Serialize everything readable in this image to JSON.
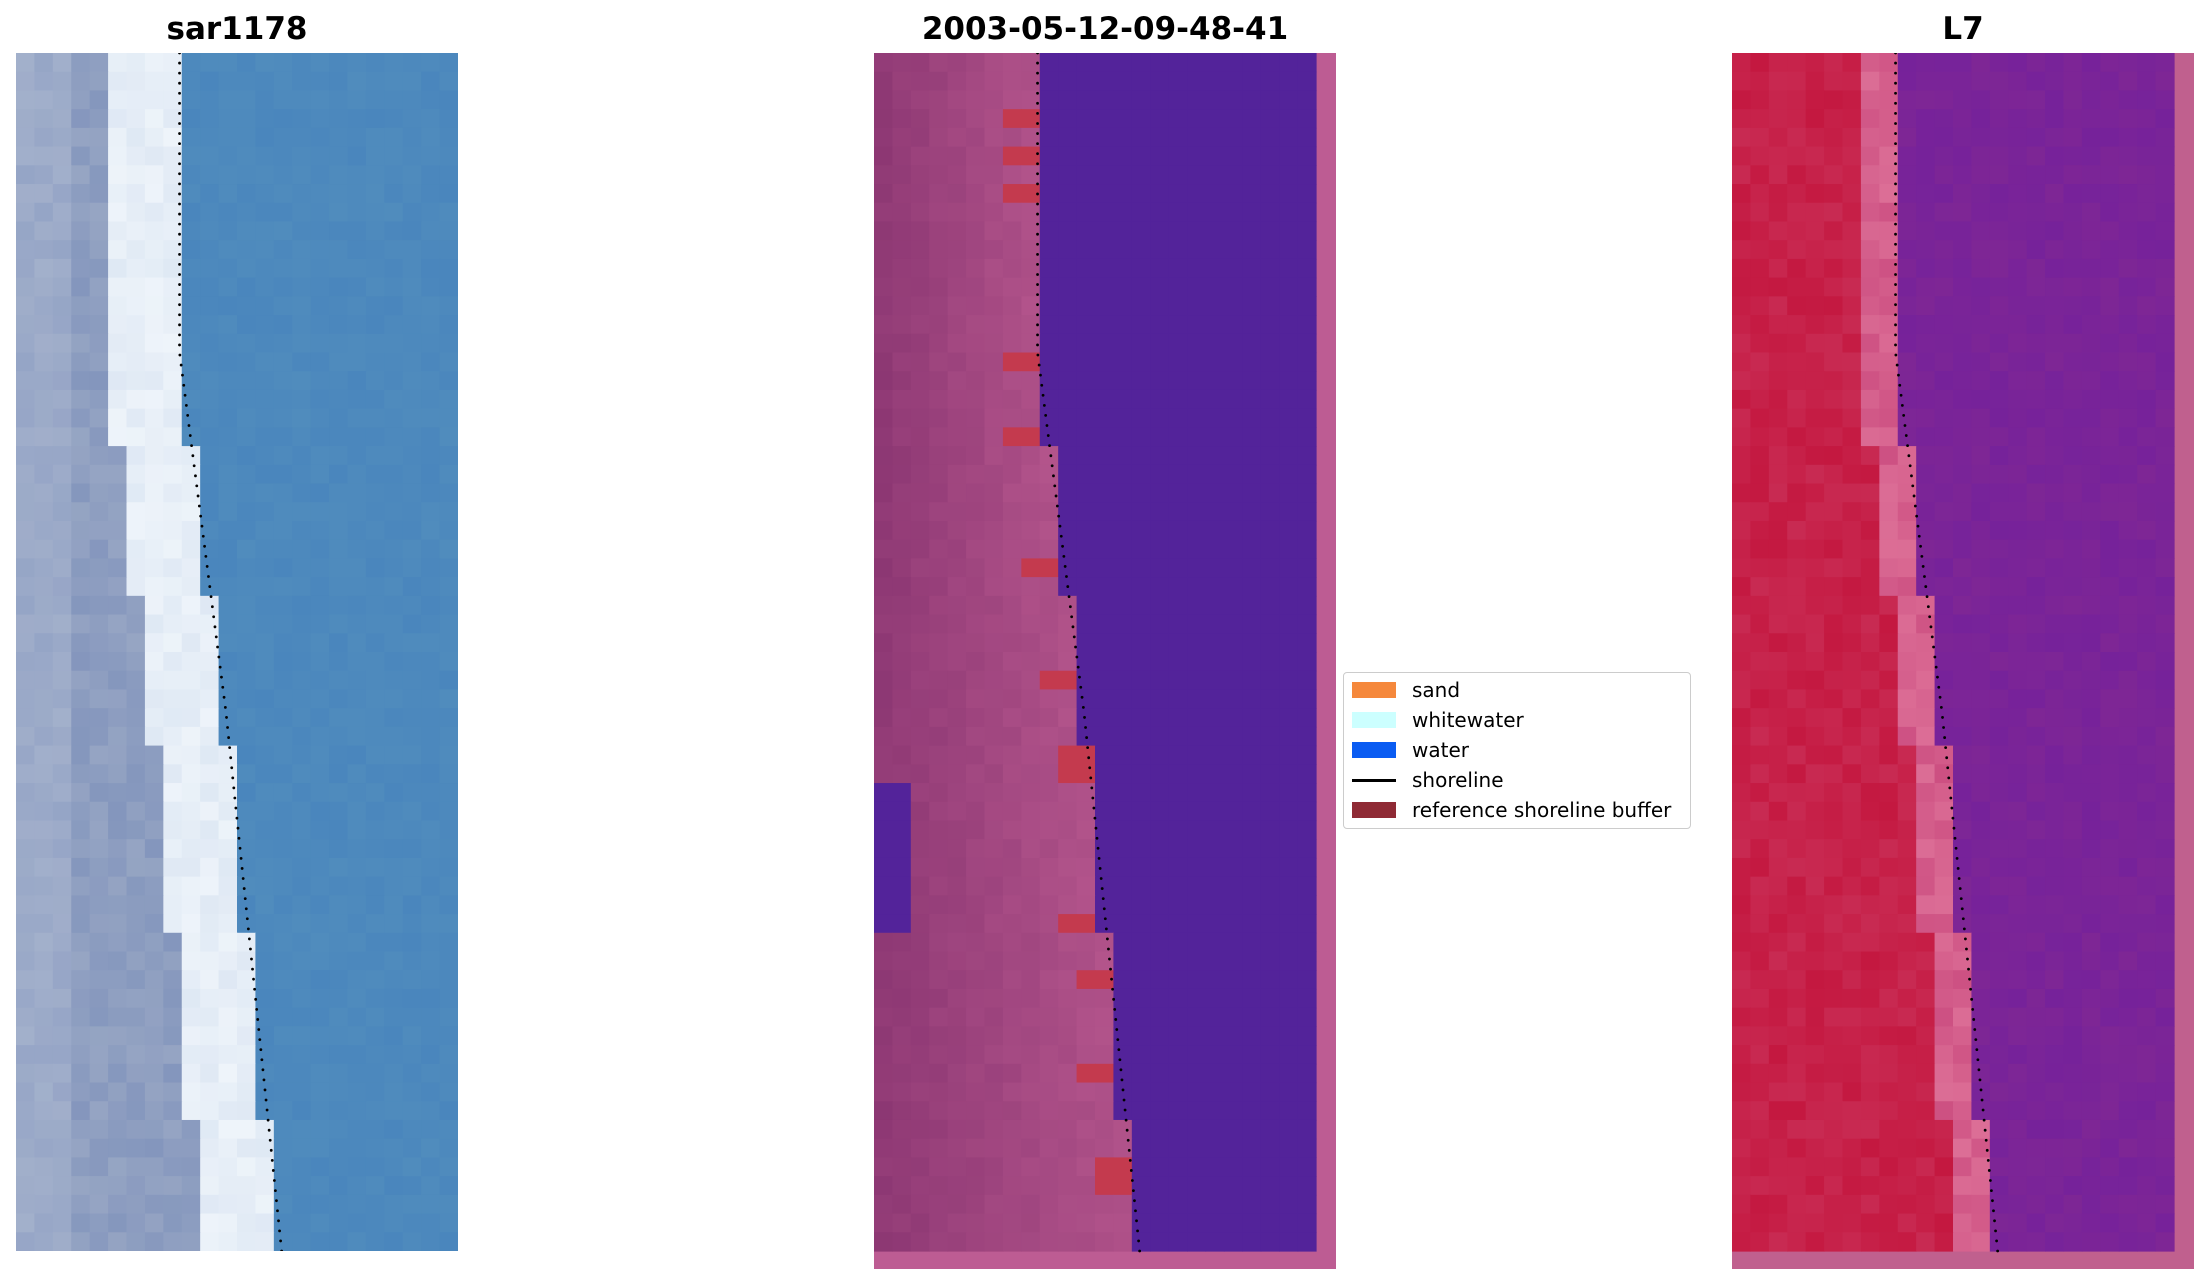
{
  "panels": [
    {
      "title": "sar1178",
      "kind": "rgb"
    },
    {
      "title": "2003-05-12-09-48-41",
      "kind": "classified"
    },
    {
      "title": "L7",
      "kind": "falsecolor"
    }
  ],
  "legend": {
    "items": [
      {
        "label": "sand",
        "color": "#f5883c",
        "type": "patch"
      },
      {
        "label": "whitewater",
        "color": "#ccffff",
        "type": "patch"
      },
      {
        "label": "water",
        "color": "#0a5cf2",
        "type": "patch"
      },
      {
        "label": "shoreline",
        "color": "#000000",
        "type": "line"
      },
      {
        "label": "reference shoreline buffer",
        "color": "#8f2a35",
        "type": "patch"
      }
    ]
  },
  "colors": {
    "ocean_rgb": "#4a86bd",
    "water_class": "#53239a",
    "buffer_class": "#c43a4e",
    "land_class": "#a2467e",
    "land_falsecolor": "#c41840",
    "water_falsecolor": "#7e2695"
  }
}
